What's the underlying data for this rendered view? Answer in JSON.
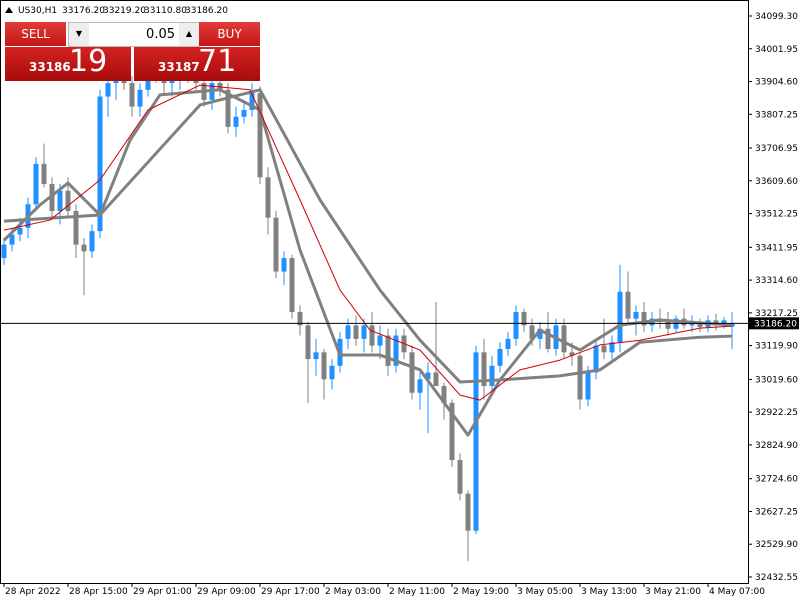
{
  "header": {
    "symbol": "US30,H1",
    "open": "33176.20",
    "high": "33219.20",
    "low": "33110.80",
    "close": "33186.20"
  },
  "trade_panel": {
    "sell": "SELL",
    "buy": "BUY",
    "volume": "0.05",
    "bid_main": "33186",
    "bid_pips": "19",
    "ask_main": "33187",
    "ask_pips": "71"
  },
  "chart_data": {
    "type": "candlestick",
    "up_color": "#1e90ff",
    "down_color": "#808080",
    "categories": [
      "28 Apr 2022",
      null,
      null,
      null,
      null,
      null,
      null,
      null,
      "28 Apr 15:00",
      null,
      null,
      null,
      null,
      null,
      null,
      null,
      "29 Apr 01:00",
      null,
      null,
      null,
      null,
      null,
      null,
      null,
      "29 Apr 09:00",
      null,
      null,
      null,
      null,
      null,
      null,
      null,
      "29 Apr 17:00",
      null,
      null,
      null,
      null,
      null,
      null,
      null,
      "2 May 03:00",
      null,
      null,
      null,
      null,
      null,
      null,
      null,
      "2 May 11:00",
      null,
      null,
      null,
      null,
      null,
      null,
      null,
      "2 May 19:00",
      null,
      null,
      null,
      null,
      null,
      null,
      null,
      "3 May 05:00",
      null,
      null,
      null,
      null,
      null,
      null,
      null,
      "3 May 13:00",
      null,
      null,
      null,
      null,
      null,
      null,
      null,
      "3 May 21:00",
      null,
      null,
      null,
      null,
      null,
      null,
      null,
      "4 May 07:00",
      null,
      null,
      null
    ],
    "open": [
      33380,
      33420,
      33450,
      33470,
      33540,
      33660,
      33600,
      33520,
      33580,
      33520,
      33420,
      33400,
      33460,
      33860,
      33900,
      33930,
      33900,
      33830,
      33880,
      33960,
      33920,
      33900,
      33910,
      33940,
      33930,
      33900,
      33850,
      33900,
      33880,
      33770,
      33800,
      33820,
      33870,
      33620,
      33500,
      33340,
      33380,
      33220,
      33180,
      33080,
      33100,
      33020,
      33060,
      33140,
      33180,
      33140,
      33180,
      33120,
      33150,
      33060,
      33150,
      33100,
      32980,
      33020,
      33040,
      33000,
      32950,
      32780,
      32680,
      32570,
      33100,
      33000,
      33060,
      33110,
      33140,
      33220,
      33180,
      33140,
      33170,
      33110,
      33180,
      33100,
      33090,
      32960,
      33040,
      33120,
      33100,
      33130,
      33280,
      33200,
      33220,
      33180,
      33200,
      33190,
      33170,
      33200,
      33180,
      33190,
      33175,
      33195,
      33180,
      33176
    ],
    "high": [
      33440,
      33470,
      33500,
      33560,
      33680,
      33720,
      33620,
      33600,
      33620,
      33540,
      33440,
      33480,
      33880,
      33980,
      33960,
      33980,
      33920,
      33900,
      33990,
      34000,
      33960,
      33940,
      33970,
      33990,
      33960,
      33930,
      33920,
      33940,
      33900,
      33830,
      33850,
      33900,
      33890,
      33650,
      33520,
      33400,
      33390,
      33240,
      33190,
      33140,
      33110,
      33080,
      33160,
      33200,
      33210,
      33200,
      33220,
      33180,
      33170,
      33170,
      33170,
      33120,
      33040,
      33070,
      33250,
      33010,
      32960,
      32800,
      32690,
      33120,
      33140,
      33090,
      33130,
      33160,
      33240,
      33230,
      33200,
      33190,
      33220,
      33200,
      33200,
      33130,
      33100,
      33060,
      33140,
      33200,
      33150,
      33360,
      33340,
      33240,
      33250,
      33220,
      33230,
      33220,
      33210,
      33230,
      33210,
      33200,
      33210,
      33215,
      33205,
      33219
    ],
    "low": [
      33360,
      33400,
      33430,
      33440,
      33520,
      33590,
      33500,
      33480,
      33500,
      33380,
      33270,
      33380,
      33440,
      33800,
      33850,
      33880,
      33800,
      33800,
      33860,
      33900,
      33870,
      33860,
      33880,
      33900,
      33880,
      33830,
      33820,
      33860,
      33750,
      33740,
      33780,
      33800,
      33600,
      33450,
      33320,
      33300,
      33200,
      33150,
      32950,
      33030,
      32960,
      32990,
      33040,
      33110,
      33120,
      33100,
      33100,
      33080,
      33030,
      33040,
      33080,
      32960,
      32930,
      32860,
      33000,
      32900,
      32760,
      32660,
      32480,
      32560,
      32960,
      32980,
      33040,
      33090,
      33120,
      33160,
      33120,
      33110,
      33100,
      33090,
      33080,
      33060,
      32930,
      32940,
      33020,
      33080,
      33080,
      33100,
      33180,
      33150,
      33160,
      33160,
      33170,
      33150,
      33160,
      33170,
      33160,
      33160,
      33160,
      33165,
      33170,
      33110
    ],
    "close": [
      33420,
      33450,
      33470,
      33540,
      33660,
      33600,
      33520,
      33580,
      33520,
      33420,
      33400,
      33460,
      33860,
      33900,
      33930,
      33900,
      33830,
      33880,
      33960,
      33920,
      33900,
      33910,
      33940,
      33930,
      33900,
      33850,
      33900,
      33880,
      33770,
      33800,
      33820,
      33870,
      33620,
      33500,
      33340,
      33380,
      33220,
      33180,
      33080,
      33100,
      33020,
      33060,
      33140,
      33180,
      33140,
      33180,
      33120,
      33150,
      33060,
      33150,
      33100,
      32980,
      33020,
      33040,
      33000,
      32950,
      32780,
      32680,
      32570,
      33100,
      33000,
      33060,
      33110,
      33140,
      33220,
      33180,
      33140,
      33170,
      33110,
      33180,
      33100,
      33090,
      32960,
      33040,
      33120,
      33100,
      33130,
      33280,
      33200,
      33220,
      33180,
      33200,
      33190,
      33170,
      33200,
      33180,
      33190,
      33175,
      33195,
      33180,
      33195,
      33186
    ],
    "lines": [
      {
        "color": "#808080",
        "width": 3,
        "x": [
          0,
          12,
          24.5,
          32,
          39.5,
          47,
          52,
          57,
          62,
          69.5,
          74.5,
          79.5,
          87,
          91
        ],
        "values": [
          33490,
          33508,
          33835,
          33880,
          33553,
          33285,
          33136,
          33012,
          33018,
          33030,
          33048,
          33130,
          33145,
          33148
        ]
      },
      {
        "color": "#808080",
        "width": 3,
        "x": [
          0,
          4.5,
          8,
          12,
          15.75,
          19.5,
          27,
          32,
          37,
          42,
          47,
          52,
          58,
          62,
          67,
          72,
          77,
          82,
          91
        ],
        "values": [
          33433,
          33538,
          33603,
          33508,
          33730,
          33865,
          33880,
          33820,
          33404,
          33092,
          33092,
          33048,
          32854,
          33018,
          33166,
          33107,
          33181,
          33196,
          33181
        ]
      },
      {
        "color": "#cc0000",
        "width": 1,
        "x": [
          0,
          5.75,
          12,
          18,
          24.5,
          30.75,
          37,
          42,
          45.75,
          52,
          57,
          59.5,
          64.5,
          69.5,
          74.5,
          79.5,
          87,
          91
        ],
        "values": [
          33463,
          33493,
          33612,
          33820,
          33894,
          33880,
          33553,
          33285,
          33166,
          33107,
          32973,
          32958,
          33048,
          33077,
          33122,
          33136,
          33172,
          33178
        ]
      }
    ],
    "price_line": {
      "value": 33186.2,
      "label": "33186.20"
    },
    "ylim": [
      32414.7,
      34146.8
    ],
    "yticks": [
      {
        "value": 34099.3,
        "label": "34099.30"
      },
      {
        "value": 34001.95,
        "label": "34001.95"
      },
      {
        "value": 33904.6,
        "label": "33904.60"
      },
      {
        "value": 33807.25,
        "label": "33807.25"
      },
      {
        "value": 33706.95,
        "label": "33706.95"
      },
      {
        "value": 33609.6,
        "label": "33609.60"
      },
      {
        "value": 33512.25,
        "label": "33512.25"
      },
      {
        "value": 33411.95,
        "label": "33411.95"
      },
      {
        "value": 33314.6,
        "label": "33314.60"
      },
      {
        "value": 33217.25,
        "label": "33217.25"
      },
      {
        "value": 33119.9,
        "label": "33119.90"
      },
      {
        "value": 33019.6,
        "label": "33019.60"
      },
      {
        "value": 32922.25,
        "label": "32922.25"
      },
      {
        "value": 32824.9,
        "label": "32824.90"
      },
      {
        "value": 32724.6,
        "label": "32724.60"
      },
      {
        "value": 32627.25,
        "label": "32627.25"
      },
      {
        "value": 32529.9,
        "label": "32529.90"
      },
      {
        "value": 32432.55,
        "label": "32432.55"
      }
    ]
  }
}
